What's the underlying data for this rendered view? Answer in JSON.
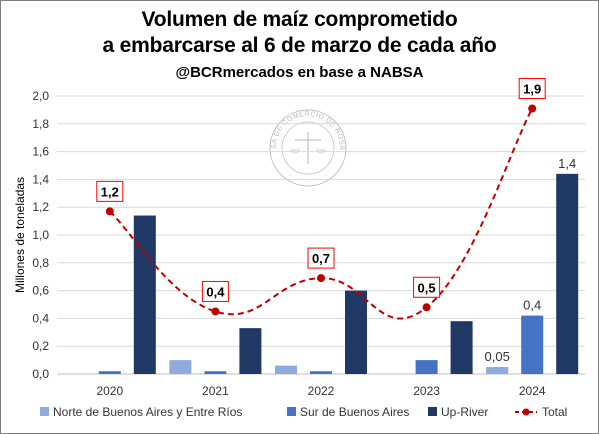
{
  "title_line1": "Volumen de maíz comprometido",
  "title_line2": "a embarcarse al 6 de marzo de cada año",
  "subtitle": "@BCRmercados en base a NABSA",
  "watermark": "BOLSA DE COMERCIO DE ROSARIO",
  "colors": {
    "norte": "#8faadc",
    "sur": "#4472c4",
    "upriver": "#203864",
    "total": "#c00000",
    "grid": "#d9d9d9"
  },
  "chart_data": {
    "type": "bar",
    "title": "Volumen de maíz comprometido a embarcarse al 6 de marzo de cada año",
    "subtitle": "@BCRmercados en base a NABSA",
    "xlabel": "",
    "ylabel": "Millones de toneladas",
    "ylim": [
      0,
      2.0
    ],
    "yticks": [
      "0,0",
      "0,2",
      "0,4",
      "0,6",
      "0,8",
      "1,0",
      "1,2",
      "1,4",
      "1,6",
      "1,8",
      "2,0"
    ],
    "categories": [
      "2020",
      "2021",
      "2022",
      "2023",
      "2024"
    ],
    "grid": true,
    "legend_position": "bottom",
    "series": [
      {
        "name": "Norte de Buenos Aires y Entre Ríos",
        "type": "bar",
        "values": [
          0.0,
          0.1,
          0.06,
          0.0,
          0.05
        ],
        "labels": [
          "",
          "",
          "",
          "",
          "0,05"
        ]
      },
      {
        "name": "Sur de Buenos Aires",
        "type": "bar",
        "values": [
          0.02,
          0.02,
          0.02,
          0.1,
          0.42
        ],
        "labels": [
          "",
          "",
          "",
          "",
          "0,4"
        ]
      },
      {
        "name": "Up-River",
        "type": "bar",
        "values": [
          1.14,
          0.33,
          0.6,
          0.38,
          1.44
        ],
        "labels": [
          "",
          "",
          "",
          "",
          "1,4"
        ]
      },
      {
        "name": "Total",
        "type": "line",
        "values": [
          1.17,
          0.45,
          0.69,
          0.48,
          1.91
        ],
        "labels": [
          "1,2",
          "0,4",
          "0,7",
          "0,5",
          "1,9"
        ]
      }
    ]
  }
}
